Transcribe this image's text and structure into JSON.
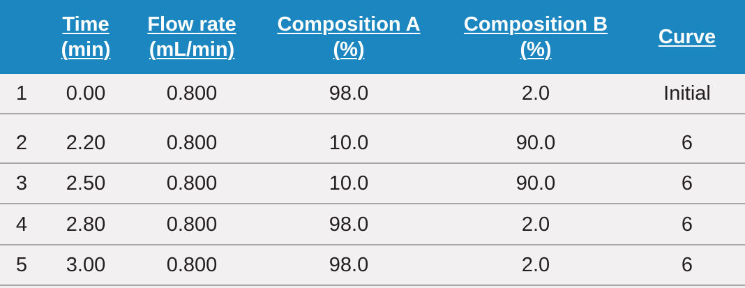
{
  "table": {
    "headers": [
      "",
      "Time\n(min)",
      "Flow rate\n(mL/min)",
      "Composition A\n(%)",
      "Composition B\n(%)",
      "Curve"
    ],
    "rows": [
      [
        "1",
        "0.00",
        "0.800",
        "98.0",
        "2.0",
        "Initial"
      ],
      [
        "2",
        "2.20",
        "0.800",
        "10.0",
        "90.0",
        "6"
      ],
      [
        "3",
        "2.50",
        "0.800",
        "10.0",
        "90.0",
        "6"
      ],
      [
        "4",
        "2.80",
        "0.800",
        "98.0",
        "2.0",
        "6"
      ],
      [
        "5",
        "3.00",
        "0.800",
        "98.0",
        "2.0",
        "6"
      ]
    ]
  },
  "colors": {
    "header_bg": "#1c86c0",
    "header_text": "#ffffff",
    "row_bg": "#f2f0f1",
    "divider": "#a9a6a8",
    "body_text": "#231f20"
  }
}
